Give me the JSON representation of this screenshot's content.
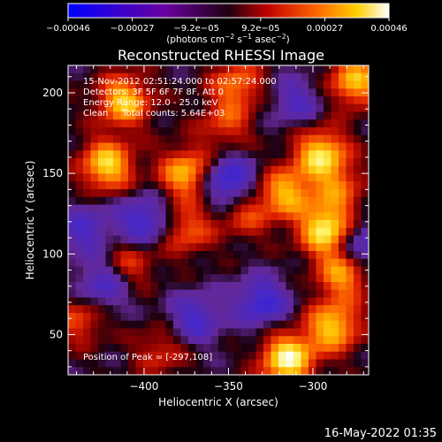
{
  "chart_data": {
    "type": "heatmap",
    "title": "Reconstructed RHESSI Image",
    "xlabel": "Heliocentric X (arcsec)",
    "ylabel": "Heliocentric Y (arcsec)",
    "xlim": [
      -445,
      -267
    ],
    "ylim": [
      25,
      217
    ],
    "x_ticks": [
      -400,
      -350,
      -300
    ],
    "y_ticks": [
      50,
      100,
      150,
      200
    ],
    "x_tick_labels": [
      "−400",
      "−350",
      "−300"
    ],
    "y_tick_labels": [
      "50",
      "100",
      "150",
      "200"
    ],
    "colorbar": {
      "range": [
        -0.00046,
        0.00046
      ],
      "tick_labels": [
        "−0.00046",
        "−0.00027",
        "−9.2e−05",
        "9.2e−05",
        "0.00027",
        "0.00046"
      ],
      "unit_parts": [
        "(photons cm",
        "−2",
        " s",
        "−1",
        " asec",
        "−2",
        ")"
      ],
      "colors": [
        "#0000ff",
        "#8b008b",
        "#ff0000",
        "#ffa500",
        "#ffffff"
      ]
    },
    "annotations": [
      "15-Nov-2012 02:51:24.000 to 02:57:24.000",
      "Detectors: 3F 5F 6F 7F 8F, Att 0",
      "Energy Range: 12.0 - 25.0 keV",
      "Clean     Total counts: 5.64E+03"
    ],
    "peak_label": "Position of Peak = [-297,108]",
    "blobs": [
      {
        "x": -315,
        "y": 35,
        "value": 1.0
      },
      {
        "x": -292,
        "y": 115,
        "value": 0.95
      },
      {
        "x": -295,
        "y": 162,
        "value": 0.85
      },
      {
        "x": -316,
        "y": 138,
        "value": 0.7
      },
      {
        "x": -288,
        "y": 55,
        "value": 0.8
      },
      {
        "x": -282,
        "y": 88,
        "value": 0.7
      },
      {
        "x": -375,
        "y": 150,
        "value": 0.75
      },
      {
        "x": -422,
        "y": 155,
        "value": 0.85
      },
      {
        "x": -412,
        "y": 195,
        "value": 0.8
      },
      {
        "x": -275,
        "y": 207,
        "value": 0.75
      },
      {
        "x": -375,
        "y": 115,
        "value": 0.5
      },
      {
        "x": -345,
        "y": 205,
        "value": 0.55
      },
      {
        "x": -352,
        "y": 180,
        "value": 0.4
      },
      {
        "x": -408,
        "y": 95,
        "value": 0.4
      },
      {
        "x": -390,
        "y": 40,
        "value": 0.35
      },
      {
        "x": -438,
        "y": 60,
        "value": 0.45
      },
      {
        "x": -340,
        "y": 125,
        "value": 0.4
      },
      {
        "x": -285,
        "y": 140,
        "value": 0.45
      },
      {
        "x": -350,
        "y": 145,
        "value": -0.7
      },
      {
        "x": -272,
        "y": 105,
        "value": -0.55
      },
      {
        "x": -400,
        "y": 120,
        "value": -0.6
      },
      {
        "x": -425,
        "y": 80,
        "value": -0.5
      },
      {
        "x": -330,
        "y": 70,
        "value": -0.6
      },
      {
        "x": -370,
        "y": 60,
        "value": -0.5
      },
      {
        "x": -310,
        "y": 195,
        "value": -0.4
      },
      {
        "x": -435,
        "y": 115,
        "value": -0.45
      }
    ]
  },
  "footer": {
    "timestamp": "16-May-2022 01:35"
  }
}
